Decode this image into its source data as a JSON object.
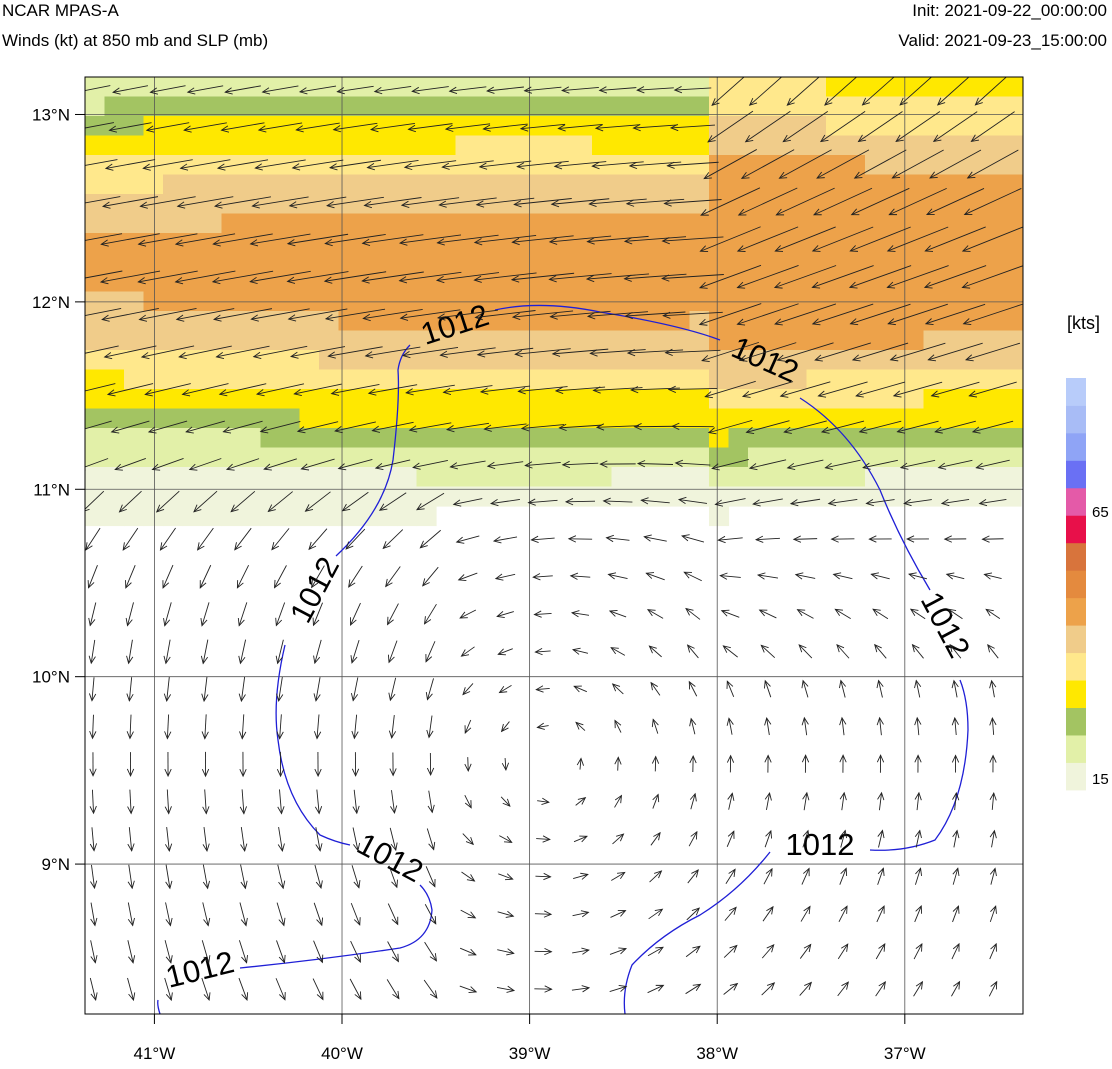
{
  "header": {
    "title": "NCAR MPAS-A",
    "subtitle": "Winds (kt) at 850 mb and SLP (mb)",
    "init": "Init: 2021-09-22_00:00:00",
    "valid": "Valid: 2021-09-23_15:00:00"
  },
  "map": {
    "lon_range": [
      -41.37,
      -36.37
    ],
    "lat_range": [
      8.2,
      13.2
    ],
    "lon_ticks": [
      -41,
      -40,
      -39,
      -38,
      -37
    ],
    "lat_ticks": [
      9,
      10,
      11,
      12,
      13
    ],
    "lon_labels": [
      "41°W",
      "40°W",
      "39°W",
      "38°W",
      "37°W"
    ],
    "lat_labels": [
      "9°N",
      "10°N",
      "11°N",
      "12°N",
      "13°N"
    ],
    "grid": true,
    "contour_color": "#1f1fd6",
    "contour_label": "1012",
    "vortex_center": [
      -38.9,
      9.55
    ]
  },
  "colorbar": {
    "units": "[kts]",
    "top_label": "65",
    "bottom_label": "15",
    "colors": [
      "#f0f4dc",
      "#e2f0a8",
      "#a3c462",
      "#ffe800",
      "#ffe88c",
      "#f0cc8a",
      "#eda24a",
      "#e48a3e",
      "#d8743c",
      "#e8104a",
      "#e45aa8",
      "#6a70f4",
      "#8fa4f6",
      "#a8bcf6",
      "#b8ccfa"
    ]
  }
}
